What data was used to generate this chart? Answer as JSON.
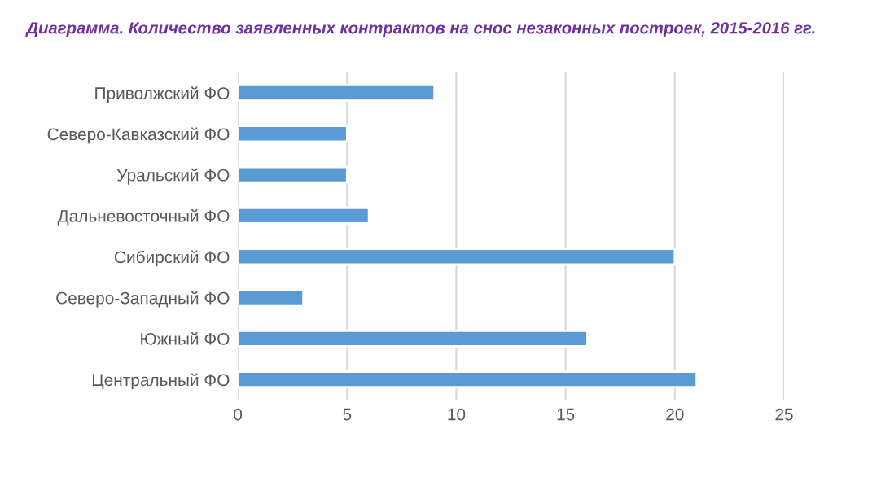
{
  "chart_data": {
    "type": "bar",
    "orientation": "horizontal",
    "title": "Диаграмма. Количество заявленных контрактов на снос незаконных построек, 2015-2016 гг.",
    "categories": [
      "Приволжский ФО",
      "Северо-Кавказский ФО",
      "Уральский ФО",
      "Дальневосточный ФО",
      "Сибирский ФО",
      "Северо-Западный ФО",
      "Южный ФО",
      "Центральный ФО"
    ],
    "values": [
      9,
      5,
      5,
      6,
      20,
      3,
      16,
      21
    ],
    "color": "#5b9bd5",
    "xlim": [
      0,
      25
    ],
    "xticks": [
      0,
      5,
      10,
      15,
      20,
      25
    ],
    "grid": "x"
  }
}
